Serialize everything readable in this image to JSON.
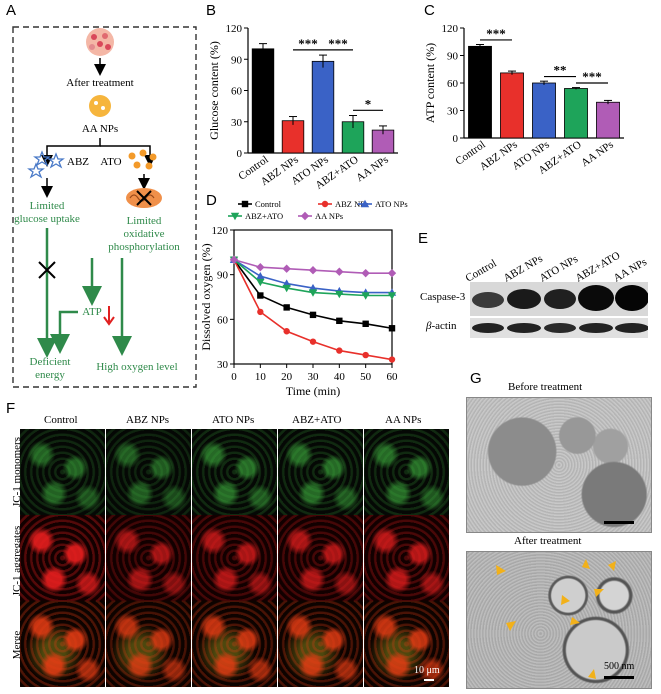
{
  "panels": {
    "A": "A",
    "B": "B",
    "C": "C",
    "D": "D",
    "E": "E",
    "F": "F",
    "G": "G"
  },
  "colors": {
    "control": "#000000",
    "abz": "#e8302b",
    "ato": "#3a62c6",
    "combo": "#1ea45a",
    "aa": "#b05cb6",
    "arrow_green": "#2f8a4a"
  },
  "schematic": {
    "after_treatment": "After treatment",
    "aa_nps": "AA NPs",
    "abz": "ABZ",
    "ato": "ATO",
    "limited_glucose": [
      "Limited",
      "glucose uptake"
    ],
    "limited_oxidative": [
      "Limited",
      "oxidative",
      "phosphorylation"
    ],
    "atp": "ATP",
    "deficient_energy": [
      "Deficient",
      "energy"
    ],
    "high_oxygen": "High oxygen level"
  },
  "chart_data": [
    {
      "panel": "B",
      "type": "bar",
      "categories": [
        "Control",
        "ABZ NPs",
        "ATO NPs",
        "ABZ+ATO",
        "AA NPs"
      ],
      "values": [
        100,
        31,
        88,
        30,
        22
      ],
      "errors": [
        5,
        4,
        6,
        6,
        4
      ],
      "ylabel": "Glucose content (%)",
      "ylim": [
        0,
        120
      ],
      "yticks": [
        0,
        30,
        60,
        90,
        120
      ],
      "significance": [
        {
          "from": 1,
          "to": 2,
          "label": "***"
        },
        {
          "from": 2,
          "to": 3,
          "label": "***"
        },
        {
          "from": 3,
          "to": 4,
          "label": "*"
        }
      ]
    },
    {
      "panel": "C",
      "type": "bar",
      "categories": [
        "Control",
        "ABZ NPs",
        "ATO NPs",
        "ABZ+ATO",
        "AA NPs"
      ],
      "values": [
        100,
        71,
        60,
        54,
        39
      ],
      "errors": [
        2,
        2,
        2,
        1,
        2
      ],
      "ylabel": "ATP content (%)",
      "ylim": [
        0,
        120
      ],
      "yticks": [
        0,
        30,
        60,
        90,
        120
      ],
      "significance": [
        {
          "from": 0,
          "to": 1,
          "label": "***"
        },
        {
          "from": 2,
          "to": 3,
          "label": "**"
        },
        {
          "from": 3,
          "to": 4,
          "label": "***"
        }
      ]
    },
    {
      "panel": "D",
      "type": "line",
      "x": [
        0,
        10,
        20,
        30,
        40,
        50,
        60
      ],
      "xlabel": "Time (min)",
      "ylabel": "Dissolved oxygen (%)",
      "xlim": [
        0,
        60
      ],
      "ylim": [
        30,
        120
      ],
      "xticks": [
        0,
        10,
        20,
        30,
        40,
        50,
        60
      ],
      "yticks": [
        30,
        60,
        90,
        120
      ],
      "series": [
        {
          "name": "Control",
          "values": [
            100,
            76,
            68,
            63,
            59,
            57,
            54
          ]
        },
        {
          "name": "ABZ NPs",
          "values": [
            100,
            65,
            52,
            45,
            39,
            36,
            33
          ]
        },
        {
          "name": "ATO NPs",
          "values": [
            100,
            89,
            84,
            81,
            79,
            78,
            78
          ]
        },
        {
          "name": "ABZ+ATO",
          "values": [
            100,
            85,
            81,
            78,
            77,
            76,
            76
          ]
        },
        {
          "name": "AA NPs",
          "values": [
            100,
            95,
            94,
            93,
            92,
            91,
            91
          ]
        }
      ]
    }
  ],
  "western": {
    "columns": [
      "Control",
      "ABZ NPs",
      "ATO NPs",
      "ABZ+ATO",
      "AA NPs"
    ],
    "row1": "Caspase-3",
    "row2_greek": "β",
    "row2": "-actin"
  },
  "confocal": {
    "columns": [
      "Control",
      "ABZ NPs",
      "ATO NPs",
      "ABZ+ATO",
      "AA NPs"
    ],
    "rows": [
      "JC-1 monomers",
      "JC-1 aggregates",
      "Merge"
    ],
    "scale": "10 μm"
  },
  "tem": {
    "before": "Before treatment",
    "after": "After treatment",
    "scale": "500 nm"
  }
}
